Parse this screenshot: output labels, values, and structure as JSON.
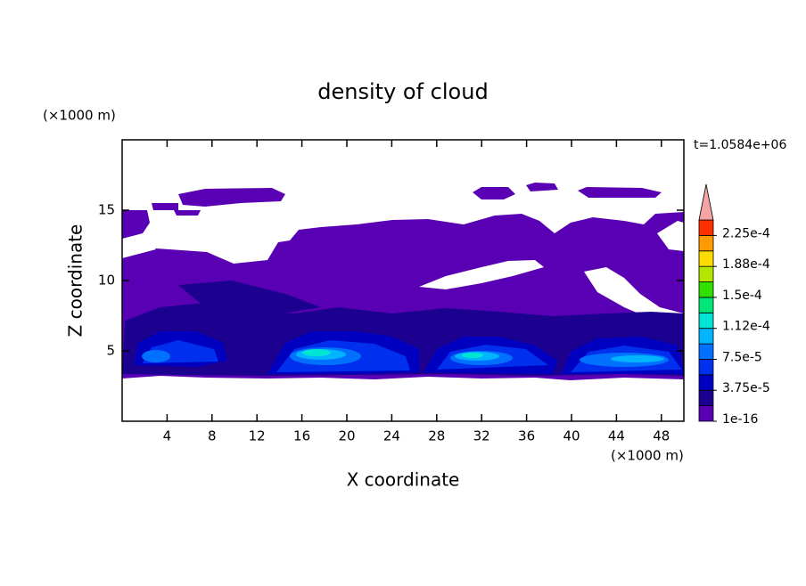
{
  "chart_data": {
    "type": "contour",
    "title": "density of cloud",
    "xlabel": "X coordinate",
    "ylabel": "Z coordinate",
    "xunit": "(×1000 m)",
    "yunit": "(×1000 m)",
    "time_label": "t=1.0584e+06",
    "xlim": [
      0,
      50
    ],
    "xticks": [
      4,
      8,
      12,
      16,
      20,
      24,
      28,
      32,
      36,
      40,
      44,
      48
    ],
    "ylim": [
      0,
      20
    ],
    "yticks": [
      5,
      10,
      15
    ],
    "clim": [
      0,
      0.00024375
    ],
    "cticks": [
      {
        "value": 1e-16,
        "label": "1e-16"
      },
      {
        "value": 3.75e-05,
        "label": "3.75e-5"
      },
      {
        "value": 7.5e-05,
        "label": "7.5e-5"
      },
      {
        "value": 0.0001125,
        "label": "1.12e-4"
      },
      {
        "value": 0.00015,
        "label": "1.5e-4"
      },
      {
        "value": 0.0001875,
        "label": "1.88e-4"
      },
      {
        "value": 0.000225,
        "label": "2.25e-4"
      }
    ],
    "colors": [
      "#5a00b4",
      "#1c0090",
      "#0000c0",
      "#0030ee",
      "#0070ff",
      "#00b4ff",
      "#00e6d2",
      "#00e678",
      "#30e000",
      "#b4e600",
      "#ffdc00",
      "#ff9a00",
      "#ff3000"
    ],
    "over_color": "#f4a4a4"
  }
}
